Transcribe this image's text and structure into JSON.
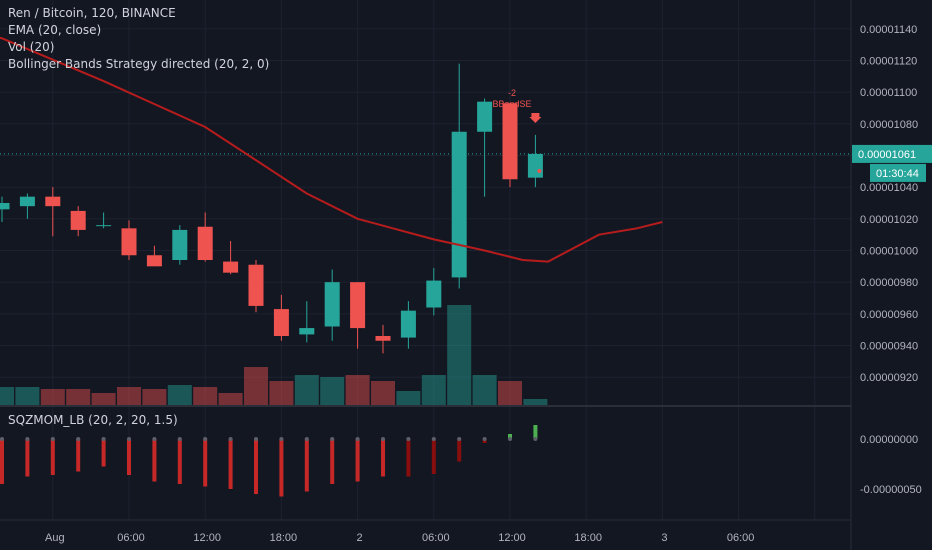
{
  "legend": {
    "symbol": "Ren / Bitcoin, 120, BINANCE",
    "ema": "EMA (20, close)",
    "vol": "Vol (20)",
    "strategy": "Bollinger Bands Strategy directed (20, 2, 0)"
  },
  "indicator_legend": "SQZMOM_LB (20, 2, 20, 1.5)",
  "price_axis": {
    "ticks": [
      "0.00001140",
      "0.00001120",
      "0.00001100",
      "0.00001080",
      "0.00001060",
      "0.00001040",
      "0.00001020",
      "0.00001000",
      "0.00000980",
      "0.00000960",
      "0.00000940",
      "0.00000920"
    ],
    "current_price": "0.00001061",
    "countdown": "01:30:44"
  },
  "indicator_axis": {
    "ticks": [
      "0.00000000",
      "-0.00000050"
    ]
  },
  "time_axis": {
    "labels": [
      "18:00",
      "Aug",
      "06:00",
      "12:00",
      "18:00",
      "2",
      "06:00",
      "12:00",
      "18:00",
      "3",
      "06:00"
    ]
  },
  "signal": {
    "count": "-2",
    "label": "BBandSE"
  },
  "colors": {
    "background": "#131722",
    "up": "#26a69a",
    "down": "#ef5350",
    "ema": "#b71c1c",
    "current_price_label": "#26a69a",
    "mom_dark_red": "#880e0e",
    "mom_red": "#c62828",
    "mom_green": "#4caf50"
  },
  "chart_data": {
    "type": "candlestick",
    "interval": "120",
    "candles": [
      {
        "o": 1.026e-05,
        "h": 1.034e-05,
        "l": 1.018e-05,
        "c": 1.03e-05
      },
      {
        "o": 1.028e-05,
        "h": 1.036e-05,
        "l": 1.02e-05,
        "c": 1.034e-05
      },
      {
        "o": 1.034e-05,
        "h": 1.04e-05,
        "l": 1.009e-05,
        "c": 1.028e-05
      },
      {
        "o": 1.025e-05,
        "h": 1.028e-05,
        "l": 1.009e-05,
        "c": 1.013e-05
      },
      {
        "o": 1.016e-05,
        "h": 1.024e-05,
        "l": 1.014e-05,
        "c": 1.016e-05
      },
      {
        "o": 1.014e-05,
        "h": 1.019e-05,
        "l": 9.94e-06,
        "c": 9.97e-06
      },
      {
        "o": 9.97e-06,
        "h": 1.003e-05,
        "l": 9.91e-06,
        "c": 9.9e-06
      },
      {
        "o": 9.94e-06,
        "h": 1.016e-05,
        "l": 9.91e-06,
        "c": 1.013e-05
      },
      {
        "o": 1.015e-05,
        "h": 1.024e-05,
        "l": 9.93e-06,
        "c": 9.94e-06
      },
      {
        "o": 9.93e-06,
        "h": 1.006e-05,
        "l": 9.85e-06,
        "c": 9.86e-06
      },
      {
        "o": 9.91e-06,
        "h": 9.94e-06,
        "l": 9.61e-06,
        "c": 9.65e-06
      },
      {
        "o": 9.63e-06,
        "h": 9.72e-06,
        "l": 9.43e-06,
        "c": 9.46e-06
      },
      {
        "o": 9.47e-06,
        "h": 9.68e-06,
        "l": 9.42e-06,
        "c": 9.51e-06
      },
      {
        "o": 9.52e-06,
        "h": 9.88e-06,
        "l": 9.43e-06,
        "c": 9.8e-06
      },
      {
        "o": 9.8e-06,
        "h": 9.79e-06,
        "l": 9.38e-06,
        "c": 9.51e-06
      },
      {
        "o": 9.46e-06,
        "h": 9.53e-06,
        "l": 9.35e-06,
        "c": 9.43e-06
      },
      {
        "o": 9.45e-06,
        "h": 9.68e-06,
        "l": 9.38e-06,
        "c": 9.62e-06
      },
      {
        "o": 9.64e-06,
        "h": 9.89e-06,
        "l": 9.59e-06,
        "c": 9.81e-06
      },
      {
        "o": 9.83e-06,
        "h": 1.118e-05,
        "l": 9.76e-06,
        "c": 1.075e-05
      },
      {
        "o": 1.075e-05,
        "h": 1.096e-05,
        "l": 1.034e-05,
        "c": 1.094e-05
      },
      {
        "o": 1.093e-05,
        "h": 1.093e-05,
        "l": 1.04e-05,
        "c": 1.045e-05
      },
      {
        "o": 1.046e-05,
        "h": 1.073e-05,
        "l": 1.04e-05,
        "c": 1.061e-05
      }
    ],
    "volume": [
      {
        "v": 0.18,
        "up": true
      },
      {
        "v": 0.18,
        "up": true
      },
      {
        "v": 0.16,
        "up": false
      },
      {
        "v": 0.16,
        "up": false
      },
      {
        "v": 0.12,
        "up": false
      },
      {
        "v": 0.18,
        "up": false
      },
      {
        "v": 0.16,
        "up": false
      },
      {
        "v": 0.2,
        "up": true
      },
      {
        "v": 0.18,
        "up": false
      },
      {
        "v": 0.12,
        "up": false
      },
      {
        "v": 0.38,
        "up": false
      },
      {
        "v": 0.24,
        "up": false
      },
      {
        "v": 0.3,
        "up": true
      },
      {
        "v": 0.28,
        "up": true
      },
      {
        "v": 0.3,
        "up": false
      },
      {
        "v": 0.24,
        "up": false
      },
      {
        "v": 0.14,
        "up": true
      },
      {
        "v": 0.3,
        "up": true
      },
      {
        "v": 1.0,
        "up": true
      },
      {
        "v": 0.3,
        "up": true
      },
      {
        "v": 0.24,
        "up": false
      },
      {
        "v": 0.06,
        "up": true
      }
    ],
    "ema": [
      [
        -2,
        1.142e-05
      ],
      [
        0,
        1.134e-05
      ],
      [
        4,
        1.107e-05
      ],
      [
        8,
        1.078e-05
      ],
      [
        10,
        1.057e-05
      ],
      [
        12,
        1.036e-05
      ],
      [
        14,
        1.02e-05
      ],
      [
        17,
        1.007e-05
      ],
      [
        19,
        1e-05
      ],
      [
        20.5,
        9.94e-06
      ],
      [
        21.5,
        9.93e-06
      ],
      [
        23.5,
        1.01e-05
      ],
      [
        25,
        1.014e-05
      ],
      [
        26,
        1.018e-05
      ]
    ],
    "momentum": [
      {
        "v": -0.9,
        "c": "mom_red"
      },
      {
        "v": -0.75,
        "c": "mom_red"
      },
      {
        "v": -0.72,
        "c": "mom_red"
      },
      {
        "v": -0.65,
        "c": "mom_red"
      },
      {
        "v": -0.55,
        "c": "mom_red"
      },
      {
        "v": -0.72,
        "c": "mom_red"
      },
      {
        "v": -0.85,
        "c": "mom_red"
      },
      {
        "v": -0.9,
        "c": "mom_red"
      },
      {
        "v": -0.95,
        "c": "mom_red"
      },
      {
        "v": -1.0,
        "c": "mom_red"
      },
      {
        "v": -1.1,
        "c": "mom_red"
      },
      {
        "v": -1.15,
        "c": "mom_red"
      },
      {
        "v": -1.05,
        "c": "mom_red"
      },
      {
        "v": -0.9,
        "c": "mom_red"
      },
      {
        "v": -0.85,
        "c": "mom_red"
      },
      {
        "v": -0.75,
        "c": "mom_red"
      },
      {
        "v": -0.75,
        "c": "mom_dark_red"
      },
      {
        "v": -0.7,
        "c": "mom_dark_red"
      },
      {
        "v": -0.45,
        "c": "mom_dark_red"
      },
      {
        "v": -0.08,
        "c": "mom_dark_red"
      },
      {
        "v": 0.1,
        "c": "mom_green"
      },
      {
        "v": 0.28,
        "c": "mom_green"
      }
    ],
    "price_range": [
      9.1e-06,
      1.15e-05
    ],
    "current_price": 1.061e-05
  }
}
